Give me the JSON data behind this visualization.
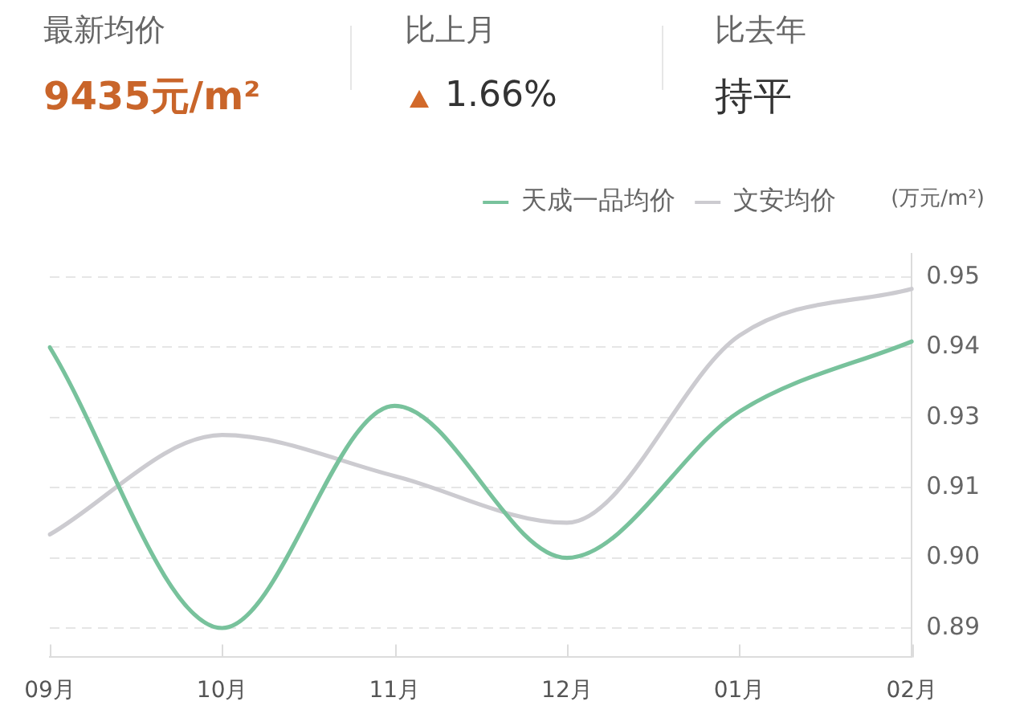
{
  "chart_data": [
    {
      "type": "other",
      "annotations": [
        "最新均价",
        "9435元/m²",
        "比上月",
        "1.66%",
        "比去年",
        "持平"
      ]
    },
    {
      "type": "line",
      "categories": [
        "09月",
        "10月",
        "11月",
        "12月",
        "01月",
        "02月"
      ],
      "series": [
        {
          "name": "天成一品均价",
          "color": "#78c29c",
          "values": [
            0.938,
            0.89,
            0.928,
            0.902,
            0.927,
            0.939
          ]
        },
        {
          "name": "文安均价",
          "color": "#cccbd0",
          "values": [
            0.906,
            0.923,
            0.916,
            0.908,
            0.94,
            0.948
          ]
        }
      ],
      "ylabel": "(万元/m²)",
      "ylim": [
        0.885,
        0.954
      ],
      "yticks": [
        0.89,
        {
          "value": 0.902,
          "label": "0.90"
        },
        {
          "value": 0.914,
          "label": "0.91"
        },
        {
          "value": 0.926,
          "label": "0.93"
        },
        {
          "value": 0.938,
          "label": "0.94"
        },
        0.95
      ],
      "grid": "y",
      "legend": "top right",
      "marker": "none"
    }
  ]
}
